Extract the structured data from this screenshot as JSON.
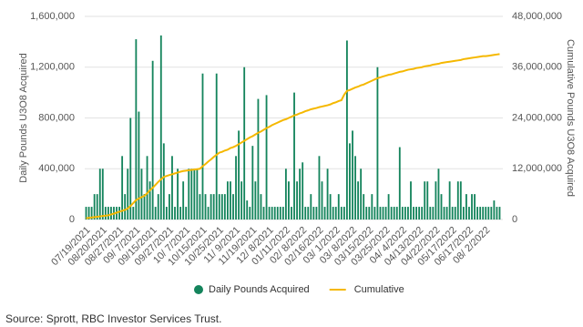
{
  "chart_data": {
    "type": "bar_line",
    "y_axis_label": "Daily Pounds U3O8 Acquired",
    "y2_axis_label": "Cumulative Pounds U3O8 Acquired",
    "source": "Source: Sprott, RBC Investor Services Trust.",
    "categories": [
      "07/19/2021",
      null,
      null,
      null,
      null,
      null,
      "08/20/2021",
      null,
      null,
      null,
      null,
      null,
      "08/27/2021",
      null,
      null,
      null,
      null,
      null,
      "09/ 7/2021",
      null,
      null,
      null,
      null,
      null,
      "09/15/2021",
      null,
      null,
      null,
      null,
      null,
      "09/27/2021",
      null,
      null,
      null,
      null,
      null,
      "10/ 7/2021",
      null,
      null,
      null,
      null,
      null,
      "10/15/2021",
      null,
      null,
      null,
      null,
      null,
      "10/25/2021",
      null,
      null,
      null,
      null,
      null,
      "11/ 9/2021",
      null,
      null,
      null,
      null,
      null,
      "11/19/2021",
      null,
      null,
      null,
      null,
      null,
      "12/ 8/2021",
      null,
      null,
      null,
      null,
      null,
      "01/11/2022",
      null,
      null,
      null,
      null,
      null,
      "02/ 8/2022",
      null,
      null,
      null,
      null,
      null,
      "02/16/2022",
      null,
      null,
      null,
      null,
      null,
      "03/ 1/2022",
      null,
      null,
      null,
      null,
      null,
      "03/ 8/2022",
      null,
      null,
      null,
      null,
      null,
      "03/15/2022",
      null,
      null,
      null,
      null,
      null,
      "03/25/2022",
      null,
      null,
      null,
      null,
      null,
      "04/ 4/2022",
      null,
      null,
      null,
      null,
      null,
      "04/13/2022",
      null,
      null,
      null,
      null,
      null,
      "04/22/2022",
      null,
      null,
      null,
      null,
      null,
      "05/17/2022",
      null,
      null,
      null,
      null,
      null,
      "06/17/2022",
      null,
      null,
      null,
      null,
      null,
      "08/ 2/2022",
      null,
      null,
      null,
      null,
      null
    ],
    "series": [
      {
        "name": "Daily Pounds Acquired",
        "color": "#14845c",
        "kind": "bar",
        "values": [
          100000,
          100000,
          100000,
          200000,
          200000,
          400000,
          400000,
          100000,
          100000,
          100000,
          100000,
          100000,
          100000,
          500000,
          200000,
          400000,
          800000,
          100000,
          1420000,
          850000,
          400000,
          200000,
          500000,
          300000,
          1250000,
          100000,
          200000,
          1450000,
          600000,
          100000,
          200000,
          500000,
          100000,
          400000,
          100000,
          300000,
          100000,
          400000,
          400000,
          400000,
          400000,
          200000,
          1150000,
          200000,
          100000,
          200000,
          200000,
          1150000,
          200000,
          200000,
          200000,
          300000,
          300000,
          200000,
          500000,
          700000,
          300000,
          1200000,
          150000,
          100000,
          580000,
          300000,
          950000,
          200000,
          100000,
          980000,
          100000,
          100000,
          100000,
          100000,
          100000,
          100000,
          400000,
          300000,
          100000,
          1000000,
          300000,
          400000,
          450000,
          100000,
          100000,
          200000,
          100000,
          100000,
          500000,
          300000,
          100000,
          400000,
          200000,
          100000,
          100000,
          200000,
          100000,
          100000,
          1410000,
          600000,
          700000,
          500000,
          300000,
          400000,
          200000,
          100000,
          100000,
          200000,
          100000,
          1200000,
          100000,
          100000,
          100000,
          200000,
          100000,
          100000,
          100000,
          570000,
          100000,
          100000,
          100000,
          300000,
          100000,
          100000,
          100000,
          100000,
          300000,
          300000,
          100000,
          100000,
          300000,
          400000,
          200000,
          100000,
          100000,
          300000,
          100000,
          100000,
          300000,
          300000,
          100000,
          200000,
          100000,
          200000,
          200000,
          100000,
          100000,
          100000,
          100000,
          100000,
          100000,
          150000,
          100000,
          100000
        ]
      },
      {
        "name": "Cumulative",
        "color": "#f5b800",
        "kind": "line",
        "axis": "y2",
        "values": [
          300000,
          390000,
          480000,
          560000,
          650000,
          740000,
          830000,
          910000,
          1000000,
          1200000,
          1400000,
          1630000,
          1840000,
          2050000,
          2260000,
          2600000,
          3200000,
          3900000,
          4600000,
          4950000,
          5300000,
          5600000,
          6200000,
          6900000,
          7500000,
          8200000,
          8900000,
          9500000,
          10070000,
          10300000,
          10500000,
          10700000,
          10900000,
          11100000,
          11300000,
          11460000,
          11550000,
          11640000,
          11730000,
          11820000,
          11900000,
          12000000,
          12600000,
          13100000,
          13700000,
          14200000,
          14800000,
          15300000,
          15800000,
          16000000,
          16300000,
          16500000,
          16900000,
          17100000,
          17400000,
          17800000,
          18200000,
          18600000,
          19000000,
          19400000,
          19700000,
          20100000,
          20500000,
          20800000,
          21200000,
          21600000,
          21900000,
          22300000,
          22600000,
          22900000,
          23200000,
          23500000,
          23700000,
          24000000,
          24300000,
          24600000,
          24800000,
          25100000,
          25300000,
          25600000,
          25800000,
          26050000,
          26200000,
          26350000,
          26550000,
          26700000,
          26850000,
          27000000,
          27200000,
          27500000,
          27700000,
          28000000,
          28200000,
          29500000,
          30400000,
          30600000,
          30900000,
          31200000,
          31400000,
          31700000,
          31900000,
          32200000,
          32500000,
          32800000,
          33100000,
          33400000,
          33600000,
          33800000,
          34000000,
          34200000,
          34300000,
          34500000,
          34700000,
          34900000,
          35000000,
          35200000,
          35400000,
          35500000,
          35600000,
          35800000,
          35900000,
          36000000,
          36200000,
          36300000,
          36400000,
          36600000,
          36700000,
          36800000,
          37000000,
          37100000,
          37200000,
          37300000,
          37400000,
          37500000,
          37600000,
          37700000,
          37900000,
          38000000,
          38100000,
          38200000,
          38300000,
          38400000,
          38500000,
          38600000,
          38600000,
          38700000,
          38800000,
          38900000,
          39000000,
          39100000
        ]
      }
    ],
    "ylim": [
      0,
      1600000
    ],
    "yticks": [
      0,
      {
        "value": 400000,
        "label": "400,000"
      },
      {
        "value": 800000,
        "label": "800,000"
      },
      {
        "value": 1200000,
        "label": "1,200,000"
      },
      {
        "value": 1600000,
        "label": "1,600,000"
      }
    ],
    "y2lim": [
      0,
      48000000
    ],
    "y2ticks": [
      0,
      {
        "value": 12000000,
        "label": "12,000,000"
      },
      {
        "value": 24000000,
        "label": "24,000,000"
      },
      {
        "value": 36000000,
        "label": "36,000,000"
      },
      {
        "value": 48000000,
        "label": "48,000,000"
      }
    ],
    "grid": true,
    "legend": "bottom"
  }
}
